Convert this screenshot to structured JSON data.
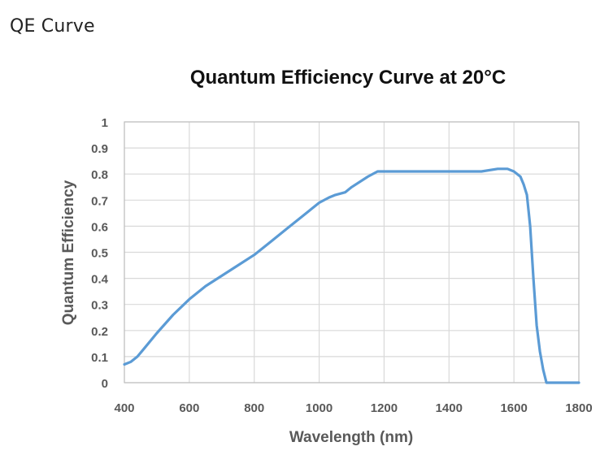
{
  "page": {
    "heading": "QE Curve"
  },
  "chart_data": {
    "type": "line",
    "title": "Quantum Efficiency Curve at 20°C",
    "xlabel": "Wavelength (nm)",
    "ylabel": "Quantum Efficiency",
    "xlim": [
      400,
      1800
    ],
    "ylim": [
      0,
      1
    ],
    "xticks": [
      "400",
      "600",
      "800",
      "1000",
      "1200",
      "1400",
      "1600",
      "1800"
    ],
    "yticks": [
      "0",
      "0.1",
      "0.2",
      "0.3",
      "0.4",
      "0.5",
      "0.6",
      "0.7",
      "0.8",
      "0.9",
      "1"
    ],
    "grid": true,
    "legend": "none",
    "line_color": "#5b9bd5",
    "grid_color": "#d9d9d9",
    "series": [
      {
        "x": [
          400,
          420,
          440,
          460,
          500,
          550,
          600,
          650,
          700,
          750,
          800,
          850,
          900,
          950,
          1000,
          1030,
          1050,
          1080,
          1100,
          1150,
          1180,
          1200,
          1250,
          1300,
          1350,
          1400,
          1450,
          1500,
          1550,
          1580,
          1600,
          1620,
          1630,
          1640,
          1650,
          1660,
          1670,
          1680,
          1690,
          1700,
          1710,
          1720,
          1750,
          1800
        ],
        "y": [
          0.07,
          0.08,
          0.1,
          0.13,
          0.19,
          0.26,
          0.32,
          0.37,
          0.41,
          0.45,
          0.49,
          0.54,
          0.59,
          0.64,
          0.69,
          0.71,
          0.72,
          0.73,
          0.75,
          0.79,
          0.81,
          0.81,
          0.81,
          0.81,
          0.81,
          0.81,
          0.81,
          0.81,
          0.82,
          0.82,
          0.81,
          0.79,
          0.76,
          0.72,
          0.6,
          0.4,
          0.22,
          0.12,
          0.05,
          0.0,
          0.0,
          0.0,
          0.0,
          0.0
        ]
      }
    ]
  }
}
